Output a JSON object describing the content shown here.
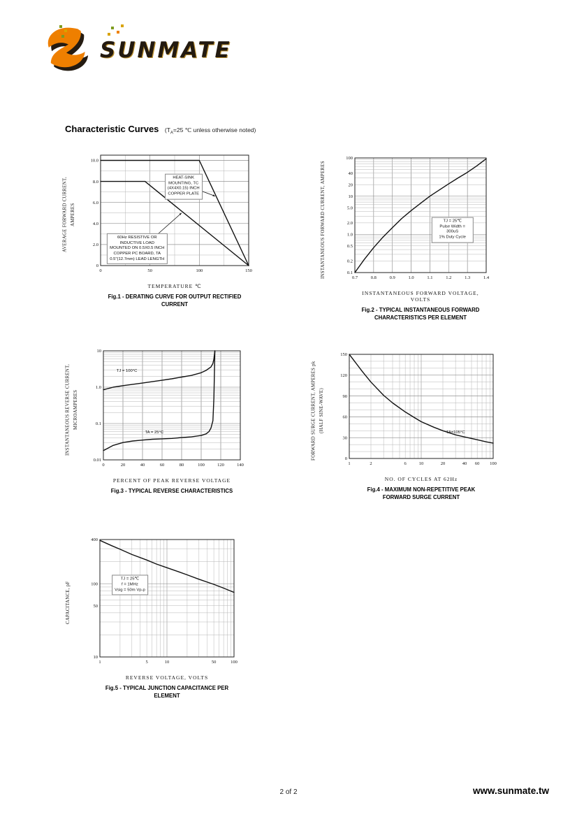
{
  "header": {
    "brand": "SUNMATE"
  },
  "colors": {
    "logo_orange": "#ee7f00",
    "logo_dark": "#241b11",
    "pixel_green": "#7e9b1e",
    "pixel_gold": "#d9a300",
    "pixel_orange": "#ef8200"
  },
  "title": {
    "main": "Characteristic Curves",
    "note_pre": "(T",
    "note_sub": "A",
    "note_post": "=25 ℃ unless otherwise noted)"
  },
  "footer": {
    "page": "2 of 2",
    "site": "www.sunmate.tw"
  },
  "chart_data": [
    {
      "type": "line",
      "caption": "Fig.1 - DERATING CURVE FOR OUTPUT RECTIFIED CURRENT",
      "xlabel": "TEMPERATURE ℃",
      "ylabel": "AVERAGE FORWARD CURRENT,\nAMPERES",
      "x_axis": {
        "type": "linear",
        "min": 0,
        "max": 150,
        "minor_step": 25,
        "ticks": [
          {
            "v": 0,
            "label": "0"
          },
          {
            "v": 50,
            "label": "50"
          },
          {
            "v": 100,
            "label": "100"
          },
          {
            "v": 150,
            "label": "150"
          }
        ]
      },
      "y_axis": {
        "type": "linear",
        "min": 0,
        "max": 10.5,
        "minor_step": 1,
        "ticks": [
          {
            "v": 10,
            "label": "10.0"
          },
          {
            "v": 8,
            "label": "8.0"
          },
          {
            "v": 6,
            "label": "6.0"
          },
          {
            "v": 4,
            "label": "4.0"
          },
          {
            "v": 2,
            "label": "2.0"
          },
          {
            "v": 0,
            "label": "0"
          }
        ]
      },
      "series": [
        {
          "name": "heat-sink mounting",
          "points": [
            [
              0,
              10
            ],
            [
              100,
              10
            ],
            [
              150,
              0
            ]
          ]
        },
        {
          "name": "PC board mounting",
          "points": [
            [
              0,
              8
            ],
            [
              45,
              8
            ],
            [
              150,
              0
            ]
          ]
        }
      ],
      "annotations": [
        {
          "text": "HEAT-SINK\nMOUNTING, TC\n(4X4X0.15) INCH\nCOPPER PLATE",
          "x": 84,
          "y": 7.5,
          "boxed": true
        },
        {
          "text": "60Hz RESISTIVE OR\nINDUCTIVE LOAD\nMOUNTED ON 0.5X0.5 INCH\nCOPPER PC BOARD, TA\n0.5\"(12.7mm) LEAD LENGTH",
          "x": 37,
          "y": 1.6,
          "boxed": true
        }
      ],
      "arrows": [
        {
          "from": [
            99,
            7.2
          ],
          "to": [
            116,
            6.6
          ]
        },
        {
          "from": [
            52,
            2.5
          ],
          "to": [
            82,
            5.0
          ]
        }
      ]
    },
    {
      "type": "line",
      "caption": "Fig.2 - TYPICAL INSTANTANEOUS FORWARD\nCHARACTERISTICS PER ELEMENT",
      "xlabel": "INSTANTANEOUS FORWARD VOLTAGE, VOLTS",
      "ylabel": "INSTANTANEOUS FORWARD CURRENT, AMPERES",
      "x_axis": {
        "type": "linear",
        "min": 0.7,
        "max": 1.4,
        "minor_step": 0.1,
        "ticks": [
          {
            "v": 0.7,
            "label": "0.7"
          },
          {
            "v": 0.8,
            "label": "0.8"
          },
          {
            "v": 0.9,
            "label": "0.9"
          },
          {
            "v": 1.0,
            "label": "1.0"
          },
          {
            "v": 1.1,
            "label": "1.1"
          },
          {
            "v": 1.2,
            "label": "1.2"
          },
          {
            "v": 1.3,
            "label": "1.3"
          },
          {
            "v": 1.4,
            "label": "1.4"
          }
        ]
      },
      "y_axis": {
        "type": "log",
        "min": 0.1,
        "max": 100,
        "ticks": [
          {
            "v": 100,
            "label": "100"
          },
          {
            "v": 40,
            "label": "40"
          },
          {
            "v": 20,
            "label": "20"
          },
          {
            "v": 10,
            "label": "10"
          },
          {
            "v": 5,
            "label": "5.0"
          },
          {
            "v": 2,
            "label": "2.0"
          },
          {
            "v": 1,
            "label": "1.0"
          },
          {
            "v": 0.5,
            "label": "0.5"
          },
          {
            "v": 0.2,
            "label": "0.2"
          },
          {
            "v": 0.1,
            "label": "0.1"
          }
        ]
      },
      "series": [
        {
          "name": "forward characteristic",
          "points": [
            [
              0.7,
              0.1
            ],
            [
              0.75,
              0.22
            ],
            [
              0.8,
              0.45
            ],
            [
              0.85,
              0.85
            ],
            [
              0.9,
              1.5
            ],
            [
              0.95,
              2.6
            ],
            [
              1.0,
              4.2
            ],
            [
              1.05,
              6.5
            ],
            [
              1.1,
              10
            ],
            [
              1.15,
              14.5
            ],
            [
              1.2,
              21
            ],
            [
              1.25,
              30
            ],
            [
              1.3,
              42
            ],
            [
              1.35,
              62
            ],
            [
              1.4,
              95
            ]
          ]
        }
      ],
      "annotations": [
        {
          "text": "TJ = 25℃\nPulse Width = 300uS\n1% Duty Cycle",
          "x": 1.22,
          "y": 1.3,
          "boxed": true
        }
      ]
    },
    {
      "type": "line",
      "caption": "Fig.3 - TYPICAL REVERSE CHARACTERISTICS",
      "xlabel": "PERCENT OF PEAK REVERSE VOLTAGE",
      "ylabel": "INSTANTANEOUS REVERSE CURRENT,\nMICROAMPERES",
      "x_axis": {
        "type": "linear",
        "min": 0,
        "max": 140,
        "minor_step": 20,
        "ticks": [
          {
            "v": 0,
            "label": "0"
          },
          {
            "v": 20,
            "label": "20"
          },
          {
            "v": 40,
            "label": "40"
          },
          {
            "v": 60,
            "label": "60"
          },
          {
            "v": 80,
            "label": "80"
          },
          {
            "v": 100,
            "label": "100"
          },
          {
            "v": 120,
            "label": "120"
          },
          {
            "v": 140,
            "label": "140"
          }
        ]
      },
      "y_axis": {
        "type": "log",
        "min": 0.01,
        "max": 10,
        "ticks": [
          {
            "v": 10,
            "label": "10"
          },
          {
            "v": 1,
            "label": "1.0"
          },
          {
            "v": 0.1,
            "label": "0.1"
          },
          {
            "v": 0.01,
            "label": "0.01"
          }
        ]
      },
      "series": [
        {
          "name": "TJ = 100°C",
          "points": [
            [
              0,
              0.85
            ],
            [
              10,
              1.0
            ],
            [
              20,
              1.1
            ],
            [
              30,
              1.2
            ],
            [
              40,
              1.3
            ],
            [
              50,
              1.42
            ],
            [
              60,
              1.55
            ],
            [
              70,
              1.7
            ],
            [
              80,
              1.9
            ],
            [
              90,
              2.1
            ],
            [
              100,
              2.5
            ],
            [
              105,
              2.9
            ],
            [
              110,
              3.6
            ],
            [
              112,
              4.5
            ],
            [
              113,
              6
            ],
            [
              114,
              10
            ]
          ]
        },
        {
          "name": "TA = 25°C",
          "points": [
            [
              0,
              0.018
            ],
            [
              10,
              0.025
            ],
            [
              20,
              0.03
            ],
            [
              30,
              0.033
            ],
            [
              40,
              0.035
            ],
            [
              50,
              0.037
            ],
            [
              60,
              0.038
            ],
            [
              70,
              0.039
            ],
            [
              80,
              0.041
            ],
            [
              90,
              0.043
            ],
            [
              100,
              0.047
            ],
            [
              105,
              0.052
            ],
            [
              108,
              0.06
            ],
            [
              110,
              0.075
            ],
            [
              112,
              0.12
            ],
            [
              113,
              0.5
            ],
            [
              114,
              10
            ]
          ]
        }
      ],
      "annotations": [
        {
          "text": "TJ = 100°C",
          "x": 24,
          "y": 2.6,
          "boxed": false
        },
        {
          "text": "TA = 25°C",
          "x": 52,
          "y": 0.055,
          "boxed": false
        }
      ]
    },
    {
      "type": "line",
      "caption": "Fig.4 - MAXIMUM NON-REPETITIVE PEAK\nFORWARD SURGE CURRENT",
      "xlabel": "NO. OF CYCLES AT 62Hz",
      "ylabel": "FORWARD SURGE CURRENT, AMPERES pk\n(HALF SINE-WAVE)",
      "x_axis": {
        "type": "log",
        "min": 1,
        "max": 100,
        "ticks": [
          {
            "v": 1,
            "label": "1"
          },
          {
            "v": 2,
            "label": "2"
          },
          {
            "v": 6,
            "label": "6"
          },
          {
            "v": 10,
            "label": "10"
          },
          {
            "v": 20,
            "label": "20"
          },
          {
            "v": 40,
            "label": "40"
          },
          {
            "v": 60,
            "label": "60"
          },
          {
            "v": 100,
            "label": "100"
          }
        ]
      },
      "y_axis": {
        "type": "linear",
        "min": 0,
        "max": 150,
        "minor_step": 10,
        "ticks": [
          {
            "v": 150,
            "label": "150"
          },
          {
            "v": 120,
            "label": "120"
          },
          {
            "v": 90,
            "label": "90"
          },
          {
            "v": 60,
            "label": "60"
          },
          {
            "v": 30,
            "label": "30"
          },
          {
            "v": 0,
            "label": "0"
          }
        ]
      },
      "series": [
        {
          "name": "peak forward surge current",
          "points": [
            [
              1,
              150
            ],
            [
              1.5,
              126
            ],
            [
              2,
              110
            ],
            [
              3,
              91
            ],
            [
              4,
              80
            ],
            [
              6,
              67
            ],
            [
              8,
              59
            ],
            [
              10,
              53
            ],
            [
              15,
              45
            ],
            [
              20,
              40
            ],
            [
              30,
              34
            ],
            [
              40,
              31
            ],
            [
              60,
              27
            ],
            [
              80,
              24
            ],
            [
              100,
              22
            ]
          ]
        }
      ],
      "annotations": [
        {
          "text": "TA=105°C",
          "x": 30,
          "y": 36,
          "boxed": false
        }
      ]
    },
    {
      "type": "line",
      "caption": "Fig.5 - TYPICAL JUNCTION CAPACITANCE PER ELEMENT",
      "xlabel": "REVERSE VOLTAGE, VOLTS",
      "ylabel": "CAPACITANCE, pF",
      "x_axis": {
        "type": "log",
        "min": 1,
        "max": 100,
        "ticks": [
          {
            "v": 1,
            "label": "1"
          },
          {
            "v": 5,
            "label": "5"
          },
          {
            "v": 10,
            "label": "10"
          },
          {
            "v": 50,
            "label": "50"
          },
          {
            "v": 100,
            "label": "100"
          }
        ]
      },
      "y_axis": {
        "type": "log",
        "min": 10,
        "max": 400,
        "ticks": [
          {
            "v": 400,
            "label": "400"
          },
          {
            "v": 100,
            "label": "100"
          },
          {
            "v": 50,
            "label": "50"
          },
          {
            "v": 10,
            "label": "10"
          }
        ]
      },
      "series": [
        {
          "name": "junction capacitance",
          "points": [
            [
              1,
              390
            ],
            [
              1.5,
              330
            ],
            [
              2,
              295
            ],
            [
              3,
              250
            ],
            [
              5,
              210
            ],
            [
              7,
              185
            ],
            [
              10,
              165
            ],
            [
              15,
              145
            ],
            [
              20,
              132
            ],
            [
              30,
              115
            ],
            [
              50,
              98
            ],
            [
              70,
              87
            ],
            [
              100,
              76
            ]
          ]
        }
      ],
      "annotations": [
        {
          "text": "TJ = 25℃\nf = 1MHz\nVsig = 50m Vp-p",
          "x": 2.8,
          "y": 95,
          "boxed": true
        }
      ]
    }
  ]
}
